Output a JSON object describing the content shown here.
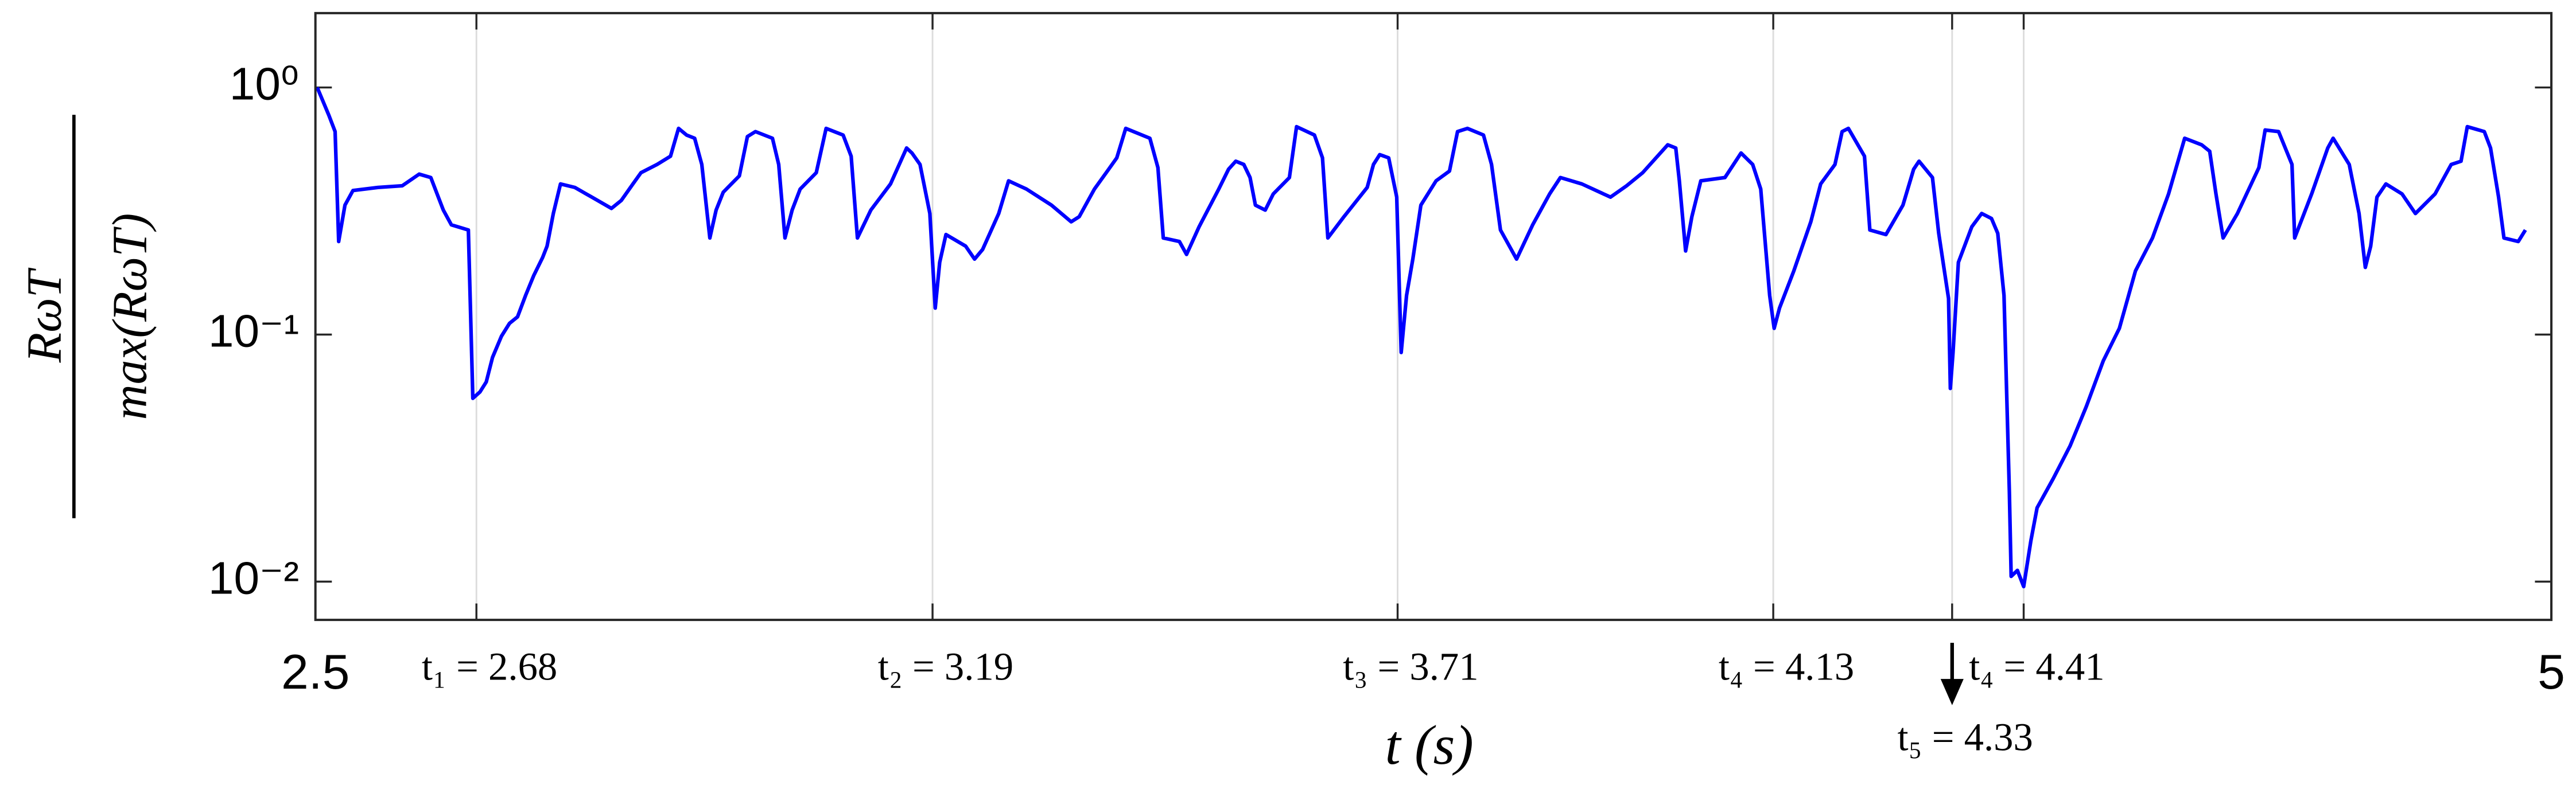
{
  "chart_data": {
    "type": "line",
    "color": "#0000ff",
    "log_y": true,
    "grid": "x",
    "xlabel": "t (s)",
    "ylabel": {
      "numerator": "RωT",
      "denominator": "max(RωT)"
    },
    "xlim": [
      2.5,
      5
    ],
    "ylim": [
      0.007,
      2
    ],
    "xticks": [
      2.5,
      {
        "value": 2.68,
        "label": "t₁ = 2.68"
      },
      {
        "value": 3.19,
        "label": "t₂ = 3.19"
      },
      {
        "value": 3.71,
        "label": "t₃ = 3.71"
      },
      {
        "value": 4.13,
        "label": "t₄ = 4.13"
      },
      {
        "value": 4.33,
        "label": "t₅ = 4.33"
      },
      {
        "value": 4.41,
        "label": "t₄ = 4.41"
      },
      5
    ],
    "yticks": [
      {
        "value": 0.01,
        "label": "10⁻²"
      },
      {
        "value": 0.1,
        "label": "10⁻¹"
      },
      {
        "value": 1,
        "label": "10⁰"
      }
    ],
    "x": [
      2.502,
      2.515,
      2.522,
      2.526,
      2.533,
      2.542,
      2.57,
      2.597,
      2.616,
      2.629,
      2.643,
      2.652,
      2.671,
      2.676,
      2.684,
      2.691,
      2.698,
      2.708,
      2.717,
      2.726,
      2.735,
      2.744,
      2.754,
      2.759,
      2.766,
      2.774,
      2.79,
      2.809,
      2.831,
      2.842,
      2.855,
      2.864,
      2.882,
      2.897,
      2.906,
      2.915,
      2.924,
      2.932,
      2.941,
      2.948,
      2.956,
      2.974,
      2.983,
      2.992,
      3.011,
      3.018,
      3.025,
      3.033,
      3.042,
      3.06,
      3.071,
      3.09,
      3.099,
      3.106,
      3.121,
      3.143,
      3.161,
      3.167,
      3.176,
      3.187,
      3.193,
      3.198,
      3.205,
      3.227,
      3.237,
      3.246,
      3.264,
      3.275,
      3.295,
      3.323,
      3.345,
      3.354,
      3.371,
      3.387,
      3.396,
      3.406,
      3.433,
      3.442,
      3.448,
      3.466,
      3.474,
      3.488,
      3.51,
      3.521,
      3.529,
      3.538,
      3.545,
      3.551,
      3.562,
      3.571,
      3.589,
      3.597,
      3.617,
      3.626,
      3.632,
      3.65,
      3.676,
      3.683,
      3.69,
      3.7,
      3.709,
      3.714,
      3.72,
      3.727,
      3.736,
      3.753,
      3.768,
      3.777,
      3.788,
      3.806,
      3.815,
      3.825,
      3.843,
      3.861,
      3.88,
      3.892,
      3.916,
      3.948,
      3.966,
      3.984,
      4.012,
      4.021,
      4.025,
      4.032,
      4.039,
      4.049,
      4.076,
      4.094,
      4.107,
      4.116,
      4.126,
      4.131,
      4.137,
      4.153,
      4.172,
      4.183,
      4.199,
      4.207,
      4.214,
      4.232,
      4.238,
      4.256,
      4.275,
      4.287,
      4.293,
      4.308,
      4.315,
      4.326,
      4.328,
      4.331,
      4.337,
      4.352,
      4.363,
      4.374,
      4.381,
      4.388,
      4.394,
      4.396,
      4.403,
      4.41,
      4.418,
      4.425,
      4.443,
      4.462,
      4.48,
      4.499,
      4.517,
      4.535,
      4.554,
      4.572,
      4.59,
      4.609,
      4.618,
      4.625,
      4.633,
      4.649,
      4.673,
      4.68,
      4.695,
      4.71,
      4.713,
      4.732,
      4.75,
      4.756,
      4.774,
      4.785,
      4.792,
      4.798,
      4.805,
      4.815,
      4.833,
      4.848,
      4.87,
      4.888,
      4.899,
      4.906,
      4.925,
      4.932,
      4.941,
      4.947,
      4.963,
      4.971
    ],
    "values": [
      1.0,
      0.772,
      0.663,
      0.238,
      0.334,
      0.383,
      0.394,
      0.4,
      0.446,
      0.432,
      0.319,
      0.278,
      0.265,
      0.0552,
      0.0586,
      0.0643,
      0.0808,
      0.0985,
      0.111,
      0.118,
      0.144,
      0.173,
      0.205,
      0.228,
      0.309,
      0.407,
      0.394,
      0.36,
      0.324,
      0.349,
      0.407,
      0.452,
      0.488,
      0.527,
      0.683,
      0.642,
      0.623,
      0.488,
      0.246,
      0.319,
      0.377,
      0.439,
      0.633,
      0.663,
      0.623,
      0.488,
      0.246,
      0.319,
      0.388,
      0.452,
      0.683,
      0.642,
      0.527,
      0.246,
      0.319,
      0.407,
      0.569,
      0.543,
      0.488,
      0.309,
      0.128,
      0.196,
      0.254,
      0.228,
      0.202,
      0.221,
      0.309,
      0.419,
      0.388,
      0.334,
      0.286,
      0.3,
      0.388,
      0.467,
      0.519,
      0.683,
      0.623,
      0.474,
      0.246,
      0.238,
      0.211,
      0.273,
      0.388,
      0.467,
      0.503,
      0.488,
      0.432,
      0.334,
      0.319,
      0.371,
      0.432,
      0.694,
      0.642,
      0.519,
      0.246,
      0.3,
      0.394,
      0.488,
      0.535,
      0.519,
      0.36,
      0.0846,
      0.144,
      0.202,
      0.334,
      0.419,
      0.459,
      0.663,
      0.683,
      0.642,
      0.488,
      0.265,
      0.202,
      0.278,
      0.371,
      0.432,
      0.407,
      0.36,
      0.4,
      0.452,
      0.586,
      0.569,
      0.419,
      0.218,
      0.3,
      0.419,
      0.432,
      0.543,
      0.488,
      0.388,
      0.144,
      0.106,
      0.128,
      0.181,
      0.286,
      0.407,
      0.488,
      0.663,
      0.683,
      0.527,
      0.265,
      0.254,
      0.334,
      0.467,
      0.503,
      0.432,
      0.257,
      0.14,
      0.0605,
      0.0846,
      0.196,
      0.273,
      0.309,
      0.295,
      0.257,
      0.144,
      0.0231,
      0.0105,
      0.0111,
      0.00955,
      0.0146,
      0.0199,
      0.0261,
      0.0355,
      0.0511,
      0.0783,
      0.106,
      0.181,
      0.246,
      0.371,
      0.623,
      0.586,
      0.552,
      0.371,
      0.246,
      0.309,
      0.474,
      0.673,
      0.663,
      0.488,
      0.246,
      0.371,
      0.569,
      0.623,
      0.488,
      0.309,
      0.187,
      0.228,
      0.36,
      0.407,
      0.371,
      0.309,
      0.371,
      0.488,
      0.503,
      0.694,
      0.663,
      0.569,
      0.36,
      0.246,
      0.238,
      0.265
    ]
  }
}
